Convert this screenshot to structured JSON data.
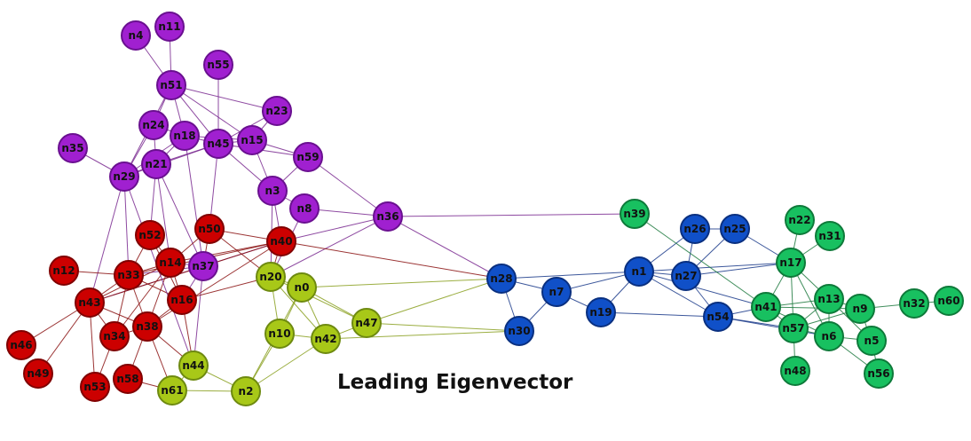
{
  "title": "Leading Eigenvector",
  "communities": {
    "purple": {
      "fill": "#a020d0",
      "stroke": "#6a1090",
      "edge": "#7a2a90"
    },
    "red": {
      "fill": "#cc0000",
      "stroke": "#800000",
      "edge": "#8a1010"
    },
    "yellowgreen": {
      "fill": "#a8c818",
      "stroke": "#6e8a10",
      "edge": "#8aa020"
    },
    "blue": {
      "fill": "#1050c8",
      "stroke": "#0a3080",
      "edge": "#1a3a8a"
    },
    "green": {
      "fill": "#18c060",
      "stroke": "#0e7a3a",
      "edge": "#1e7a40"
    }
  },
  "nodes": [
    {
      "id": "n4",
      "community": "purple"
    },
    {
      "id": "n11",
      "community": "purple"
    },
    {
      "id": "n55",
      "community": "purple"
    },
    {
      "id": "n51",
      "community": "purple"
    },
    {
      "id": "n23",
      "community": "purple"
    },
    {
      "id": "n24",
      "community": "purple"
    },
    {
      "id": "n18",
      "community": "purple"
    },
    {
      "id": "n45",
      "community": "purple"
    },
    {
      "id": "n15",
      "community": "purple"
    },
    {
      "id": "n35",
      "community": "purple"
    },
    {
      "id": "n21",
      "community": "purple"
    },
    {
      "id": "n59",
      "community": "purple"
    },
    {
      "id": "n29",
      "community": "purple"
    },
    {
      "id": "n3",
      "community": "purple"
    },
    {
      "id": "n8",
      "community": "purple"
    },
    {
      "id": "n36",
      "community": "purple"
    },
    {
      "id": "n37",
      "community": "purple"
    },
    {
      "id": "n52",
      "community": "red"
    },
    {
      "id": "n50",
      "community": "red"
    },
    {
      "id": "n40",
      "community": "red"
    },
    {
      "id": "n12",
      "community": "red"
    },
    {
      "id": "n33",
      "community": "red"
    },
    {
      "id": "n14",
      "community": "red"
    },
    {
      "id": "n43",
      "community": "red"
    },
    {
      "id": "n16",
      "community": "red"
    },
    {
      "id": "n38",
      "community": "red"
    },
    {
      "id": "n34",
      "community": "red"
    },
    {
      "id": "n46",
      "community": "red"
    },
    {
      "id": "n49",
      "community": "red"
    },
    {
      "id": "n53",
      "community": "red"
    },
    {
      "id": "n58",
      "community": "red"
    },
    {
      "id": "n20",
      "community": "yellowgreen"
    },
    {
      "id": "n0",
      "community": "yellowgreen"
    },
    {
      "id": "n47",
      "community": "yellowgreen"
    },
    {
      "id": "n10",
      "community": "yellowgreen"
    },
    {
      "id": "n42",
      "community": "yellowgreen"
    },
    {
      "id": "n44",
      "community": "yellowgreen"
    },
    {
      "id": "n61",
      "community": "yellowgreen"
    },
    {
      "id": "n2",
      "community": "yellowgreen"
    },
    {
      "id": "n28",
      "community": "blue"
    },
    {
      "id": "n7",
      "community": "blue"
    },
    {
      "id": "n19",
      "community": "blue"
    },
    {
      "id": "n30",
      "community": "blue"
    },
    {
      "id": "n1",
      "community": "blue"
    },
    {
      "id": "n26",
      "community": "blue"
    },
    {
      "id": "n25",
      "community": "blue"
    },
    {
      "id": "n27",
      "community": "blue"
    },
    {
      "id": "n54",
      "community": "blue"
    },
    {
      "id": "n39",
      "community": "green"
    },
    {
      "id": "n22",
      "community": "green"
    },
    {
      "id": "n31",
      "community": "green"
    },
    {
      "id": "n17",
      "community": "green"
    },
    {
      "id": "n41",
      "community": "green"
    },
    {
      "id": "n13",
      "community": "green"
    },
    {
      "id": "n9",
      "community": "green"
    },
    {
      "id": "n32",
      "community": "green"
    },
    {
      "id": "n60",
      "community": "green"
    },
    {
      "id": "n57",
      "community": "green"
    },
    {
      "id": "n6",
      "community": "green"
    },
    {
      "id": "n5",
      "community": "green"
    },
    {
      "id": "n48",
      "community": "green"
    },
    {
      "id": "n56",
      "community": "green"
    }
  ],
  "edges": [
    [
      "n4",
      "n51"
    ],
    [
      "n11",
      "n51"
    ],
    [
      "n55",
      "n45"
    ],
    [
      "n51",
      "n23"
    ],
    [
      "n51",
      "n24"
    ],
    [
      "n51",
      "n18"
    ],
    [
      "n51",
      "n45"
    ],
    [
      "n51",
      "n15"
    ],
    [
      "n51",
      "n29"
    ],
    [
      "n24",
      "n29"
    ],
    [
      "n24",
      "n21"
    ],
    [
      "n24",
      "n18"
    ],
    [
      "n18",
      "n45"
    ],
    [
      "n18",
      "n21"
    ],
    [
      "n18",
      "n29"
    ],
    [
      "n18",
      "n37"
    ],
    [
      "n18",
      "n15"
    ],
    [
      "n45",
      "n15"
    ],
    [
      "n45",
      "n21"
    ],
    [
      "n45",
      "n29"
    ],
    [
      "n45",
      "n59"
    ],
    [
      "n45",
      "n3"
    ],
    [
      "n45",
      "n50"
    ],
    [
      "n15",
      "n59"
    ],
    [
      "n15",
      "n3"
    ],
    [
      "n15",
      "n23"
    ],
    [
      "n35",
      "n29"
    ],
    [
      "n21",
      "n29"
    ],
    [
      "n21",
      "n37"
    ],
    [
      "n21",
      "n14"
    ],
    [
      "n21",
      "n52"
    ],
    [
      "n29",
      "n33"
    ],
    [
      "n29",
      "n43"
    ],
    [
      "n59",
      "n36"
    ],
    [
      "n59",
      "n3"
    ],
    [
      "n3",
      "n8"
    ],
    [
      "n3",
      "n20"
    ],
    [
      "n3",
      "n40"
    ],
    [
      "n8",
      "n36"
    ],
    [
      "n8",
      "n20"
    ],
    [
      "n36",
      "n40"
    ],
    [
      "n36",
      "n20"
    ],
    [
      "n36",
      "n39"
    ],
    [
      "n36",
      "n28"
    ],
    [
      "n23",
      "n45"
    ],
    [
      "n37",
      "n44"
    ],
    [
      "n37",
      "n33"
    ],
    [
      "n37",
      "n14"
    ],
    [
      "n37",
      "n40"
    ],
    [
      "n37",
      "n43"
    ],
    [
      "n37",
      "n16"
    ],
    [
      "n52",
      "n33"
    ],
    [
      "n52",
      "n14"
    ],
    [
      "n52",
      "n16"
    ],
    [
      "n50",
      "n14"
    ],
    [
      "n50",
      "n37"
    ],
    [
      "n50",
      "n40"
    ],
    [
      "n50",
      "n20"
    ],
    [
      "n40",
      "n14"
    ],
    [
      "n40",
      "n33"
    ],
    [
      "n40",
      "n38"
    ],
    [
      "n40",
      "n20"
    ],
    [
      "n40",
      "n28"
    ],
    [
      "n40",
      "n43"
    ],
    [
      "n12",
      "n33"
    ],
    [
      "n33",
      "n14"
    ],
    [
      "n33",
      "n43"
    ],
    [
      "n33",
      "n34"
    ],
    [
      "n33",
      "n38"
    ],
    [
      "n33",
      "n16"
    ],
    [
      "n14",
      "n43"
    ],
    [
      "n14",
      "n16"
    ],
    [
      "n14",
      "n38"
    ],
    [
      "n14",
      "n34"
    ],
    [
      "n43",
      "n34"
    ],
    [
      "n43",
      "n38"
    ],
    [
      "n43",
      "n46"
    ],
    [
      "n43",
      "n49"
    ],
    [
      "n43",
      "n53"
    ],
    [
      "n16",
      "n38"
    ],
    [
      "n16",
      "n20"
    ],
    [
      "n38",
      "n34"
    ],
    [
      "n38",
      "n58"
    ],
    [
      "n38",
      "n61"
    ],
    [
      "n38",
      "n44"
    ],
    [
      "n34",
      "n53"
    ],
    [
      "n58",
      "n61"
    ],
    [
      "n20",
      "n0"
    ],
    [
      "n20",
      "n10"
    ],
    [
      "n20",
      "n42"
    ],
    [
      "n20",
      "n47"
    ],
    [
      "n0",
      "n10"
    ],
    [
      "n0",
      "n42"
    ],
    [
      "n0",
      "n47"
    ],
    [
      "n0",
      "n28"
    ],
    [
      "n0",
      "n2"
    ],
    [
      "n10",
      "n42"
    ],
    [
      "n10",
      "n2"
    ],
    [
      "n42",
      "n47"
    ],
    [
      "n42",
      "n30"
    ],
    [
      "n42",
      "n2"
    ],
    [
      "n47",
      "n28"
    ],
    [
      "n47",
      "n30"
    ],
    [
      "n44",
      "n61"
    ],
    [
      "n44",
      "n2"
    ],
    [
      "n61",
      "n2"
    ],
    [
      "n29",
      "n44"
    ],
    [
      "n16",
      "n44"
    ],
    [
      "n28",
      "n7"
    ],
    [
      "n28",
      "n30"
    ],
    [
      "n28",
      "n1"
    ],
    [
      "n7",
      "n19"
    ],
    [
      "n7",
      "n1"
    ],
    [
      "n7",
      "n30"
    ],
    [
      "n19",
      "n1"
    ],
    [
      "n19",
      "n54"
    ],
    [
      "n1",
      "n27"
    ],
    [
      "n1",
      "n26"
    ],
    [
      "n1",
      "n54"
    ],
    [
      "n1",
      "n17"
    ],
    [
      "n26",
      "n25"
    ],
    [
      "n26",
      "n27"
    ],
    [
      "n25",
      "n27"
    ],
    [
      "n27",
      "n17"
    ],
    [
      "n54",
      "n41"
    ],
    [
      "n54",
      "n57"
    ],
    [
      "n39",
      "n41"
    ],
    [
      "n22",
      "n17"
    ],
    [
      "n31",
      "n17"
    ],
    [
      "n17",
      "n41"
    ],
    [
      "n17",
      "n13"
    ],
    [
      "n17",
      "n57"
    ],
    [
      "n17",
      "n6"
    ],
    [
      "n25",
      "n17"
    ],
    [
      "n41",
      "n13"
    ],
    [
      "n41",
      "n57"
    ],
    [
      "n41",
      "n9"
    ],
    [
      "n13",
      "n9"
    ],
    [
      "n13",
      "n57"
    ],
    [
      "n13",
      "n6"
    ],
    [
      "n13",
      "n5"
    ],
    [
      "n9",
      "n32"
    ],
    [
      "n9",
      "n5"
    ],
    [
      "n9",
      "n57"
    ],
    [
      "n32",
      "n60"
    ],
    [
      "n57",
      "n6"
    ],
    [
      "n57",
      "n48"
    ],
    [
      "n6",
      "n5"
    ],
    [
      "n6",
      "n56"
    ],
    [
      "n5",
      "n56"
    ],
    [
      "n41",
      "n6"
    ],
    [
      "n54",
      "n6"
    ],
    [
      "n1",
      "n41"
    ],
    [
      "n27",
      "n54"
    ]
  ]
}
